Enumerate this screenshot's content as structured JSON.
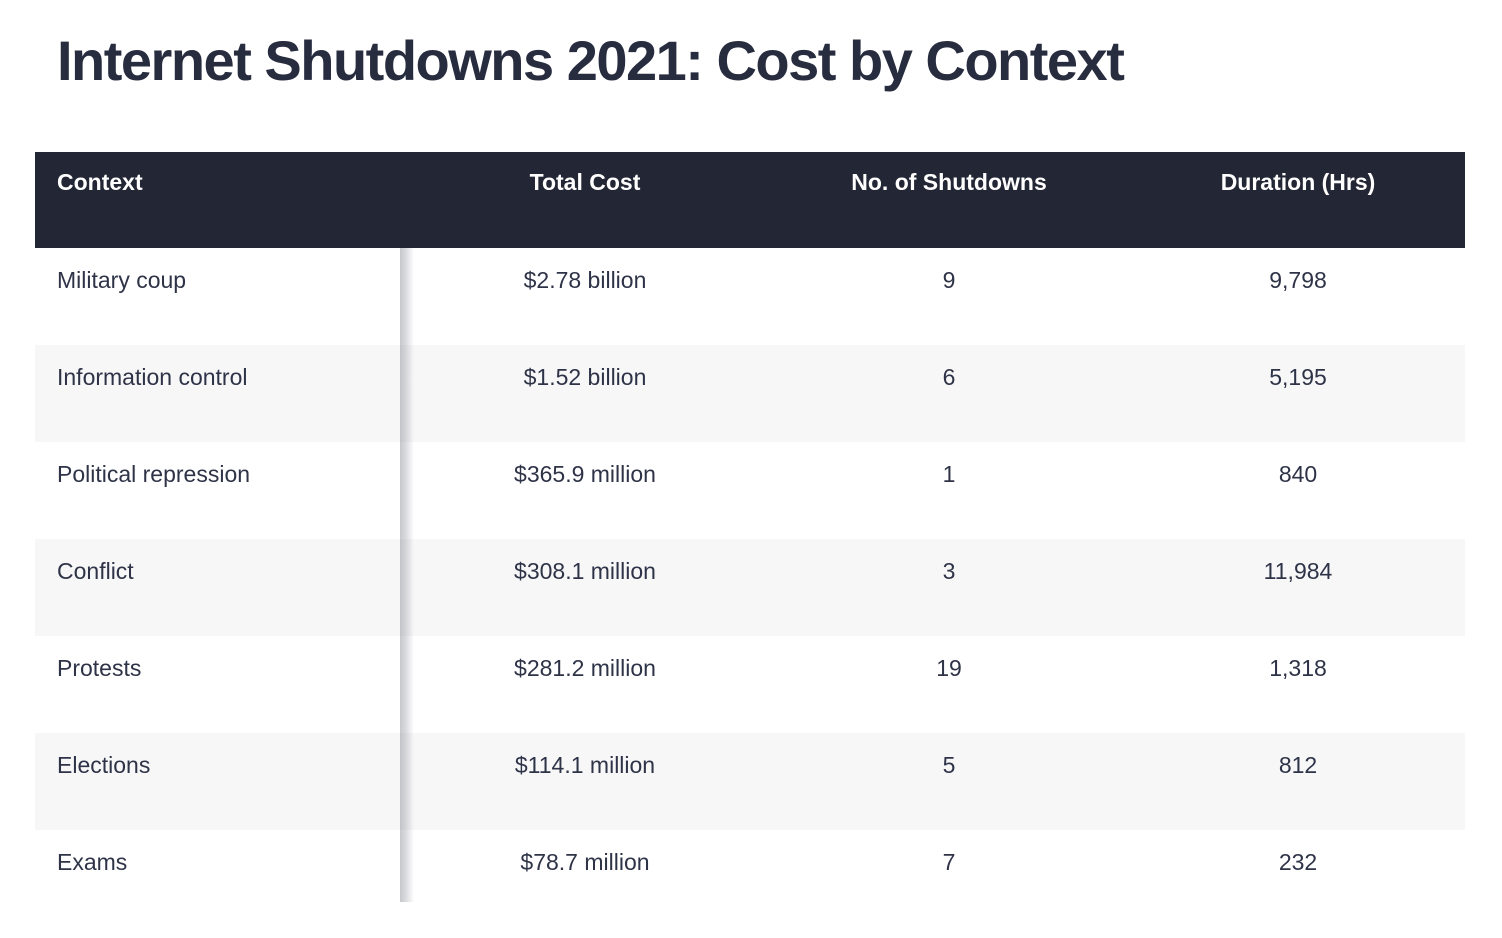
{
  "title": "Internet Shutdowns 2021: Cost by Context",
  "table": {
    "columns": [
      {
        "label": "Context"
      },
      {
        "label": "Total Cost"
      },
      {
        "label": "No. of Shutdowns"
      },
      {
        "label": "Duration (Hrs)"
      }
    ],
    "rows": [
      {
        "context": "Military coup",
        "total_cost": "$2.78 billion",
        "shutdowns": "9",
        "duration": "9,798"
      },
      {
        "context": "Information control",
        "total_cost": "$1.52 billion",
        "shutdowns": "6",
        "duration": "5,195"
      },
      {
        "context": "Political repression",
        "total_cost": "$365.9 million",
        "shutdowns": "1",
        "duration": "840"
      },
      {
        "context": "Conflict",
        "total_cost": "$308.1 million",
        "shutdowns": "3",
        "duration": "11,984"
      },
      {
        "context": "Protests",
        "total_cost": "$281.2 million",
        "shutdowns": "19",
        "duration": "1,318"
      },
      {
        "context": "Elections",
        "total_cost": "$114.1 million",
        "shutdowns": "5",
        "duration": "812"
      },
      {
        "context": "Exams",
        "total_cost": "$78.7 million",
        "shutdowns": "7",
        "duration": "232"
      }
    ]
  },
  "colors": {
    "header_background": "#232634",
    "header_text": "#ffffff",
    "body_text": "#2e3347",
    "stripe": "#f7f7f8",
    "title_text": "#272c3f"
  },
  "chart_data": {
    "type": "table",
    "title": "Internet Shutdowns 2021: Cost by Context",
    "columns": [
      "Context",
      "Total Cost",
      "No. of Shutdowns",
      "Duration (Hrs)"
    ],
    "rows": [
      [
        "Military coup",
        "$2.78 billion",
        9,
        9798
      ],
      [
        "Information control",
        "$1.52 billion",
        6,
        5195
      ],
      [
        "Political repression",
        "$365.9 million",
        1,
        840
      ],
      [
        "Conflict",
        "$308.1 million",
        3,
        11984
      ],
      [
        "Protests",
        "$281.2 million",
        19,
        1318
      ],
      [
        "Elections",
        "$114.1 million",
        5,
        812
      ],
      [
        "Exams",
        "$78.7 million",
        7,
        232
      ]
    ]
  }
}
